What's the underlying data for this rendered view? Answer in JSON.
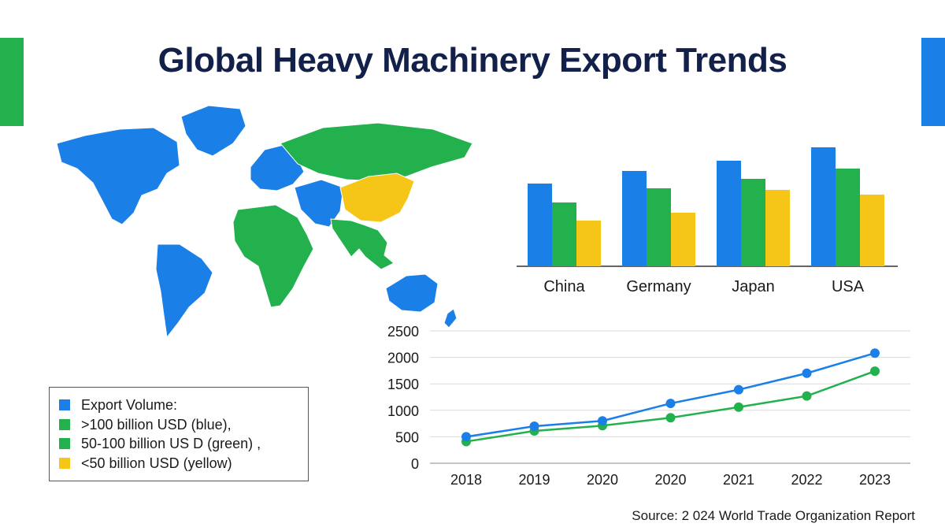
{
  "title": "Global Heavy Machinery Export Trends",
  "colors": {
    "blue": "#1a7fe6",
    "green": "#22b14c",
    "yellow": "#f5c518",
    "title": "#12204a"
  },
  "map": {
    "regions": [
      {
        "name": "north-america",
        "category": "blue"
      },
      {
        "name": "greenland",
        "category": "blue"
      },
      {
        "name": "south-america",
        "category": "blue"
      },
      {
        "name": "africa",
        "category": "green"
      },
      {
        "name": "europe",
        "category": "blue"
      },
      {
        "name": "russia",
        "category": "green"
      },
      {
        "name": "middle-east",
        "category": "blue"
      },
      {
        "name": "china",
        "category": "yellow"
      },
      {
        "name": "india-southeast-asia",
        "category": "green"
      },
      {
        "name": "australia",
        "category": "blue"
      }
    ]
  },
  "legend": {
    "items": [
      {
        "label": "Export Volume:",
        "color": "blue"
      },
      {
        "label": ">100 billion USD (blue),",
        "color": "green"
      },
      {
        "label": "50-100 billion US D (green) ,",
        "color": "green"
      },
      {
        "label": "<50 billion USD (yellow)",
        "color": "yellow"
      }
    ]
  },
  "source": "Source: 2 024 World Trade Organization Report",
  "chart_data": [
    {
      "type": "bar",
      "title": "",
      "categories": [
        "China",
        "Germany",
        "Japan",
        "USA"
      ],
      "series": [
        {
          "name": "blue",
          "color": "blue",
          "values": [
            105,
            121,
            134,
            151
          ]
        },
        {
          "name": "green",
          "color": "green",
          "values": [
            81,
            99,
            111,
            124
          ]
        },
        {
          "name": "yellow",
          "color": "yellow",
          "values": [
            58,
            68,
            97,
            91
          ]
        }
      ],
      "ylim": [
        0,
        160
      ],
      "xlabel": "",
      "ylabel": ""
    },
    {
      "type": "line",
      "title": "",
      "categories": [
        "2018",
        "2019",
        "2020",
        "2020",
        "2021",
        "2022",
        "2023"
      ],
      "series": [
        {
          "name": "blue",
          "color": "blue",
          "values": [
            500,
            700,
            800,
            1130,
            1390,
            1700,
            2080
          ]
        },
        {
          "name": "green",
          "color": "green",
          "values": [
            410,
            610,
            710,
            860,
            1060,
            1270,
            1740
          ]
        }
      ],
      "yticks": [
        0,
        500,
        1000,
        1500,
        2000,
        2500
      ],
      "ylim": [
        0,
        2500
      ],
      "grid": true,
      "xlabel": "",
      "ylabel": ""
    }
  ]
}
